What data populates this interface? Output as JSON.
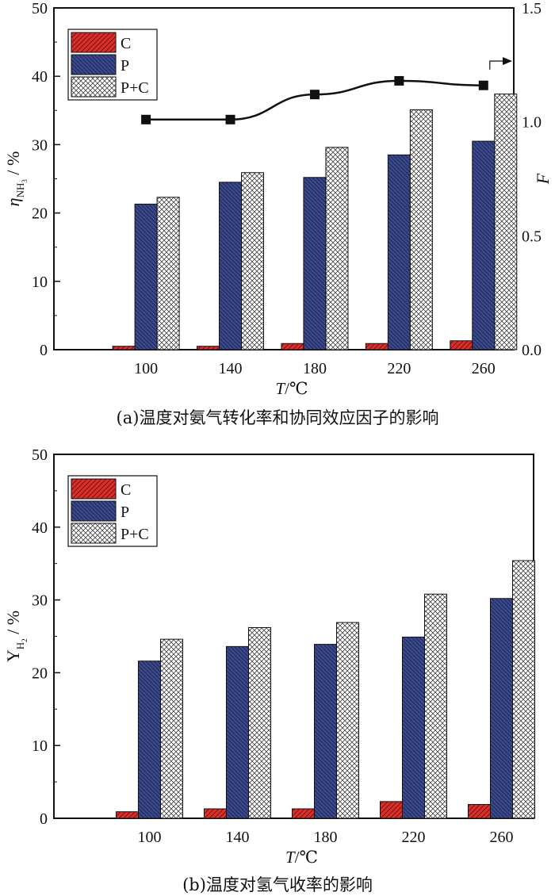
{
  "colors": {
    "C": "#d9302c",
    "P": "#3c4a8c",
    "PC": "#ffffff",
    "line": "#111111"
  },
  "chart_data": [
    {
      "type": "bar",
      "id": "a",
      "caption": "(a)温度对氨气转化率和协同效应因子的影响",
      "xlabel_var": "T",
      "xlabel_unit": "/℃",
      "ylabel_sym": "η",
      "ylabel_sub": "NH",
      "ylabel_subsub": "3",
      "ylabel_unit": " / %",
      "y2label": "F",
      "ylim": [
        0,
        50
      ],
      "yticks": [
        "0",
        "10",
        "20",
        "30",
        "40",
        "50"
      ],
      "y2lim": [
        0,
        1.5
      ],
      "y2ticks": [
        "0.0",
        "0.5",
        "1.0",
        "1.5"
      ],
      "categories": [
        "100",
        "140",
        "180",
        "220",
        "260"
      ],
      "legend_position": "top-left",
      "series": [
        {
          "name": "C",
          "key": "C",
          "values": [
            0.5,
            0.5,
            0.9,
            0.9,
            1.3
          ]
        },
        {
          "name": "P",
          "key": "P",
          "values": [
            21.3,
            24.5,
            25.2,
            28.5,
            30.5
          ]
        },
        {
          "name": "P+C",
          "key": "PC",
          "values": [
            22.3,
            25.9,
            29.6,
            35.1,
            37.4
          ]
        }
      ],
      "line_series": {
        "name": "F",
        "axis": "right",
        "values": [
          1.01,
          1.01,
          1.12,
          1.18,
          1.16
        ]
      }
    },
    {
      "type": "bar",
      "id": "b",
      "caption": "(b)温度对氢气收率的影响",
      "xlabel_var": "T",
      "xlabel_unit": "/℃",
      "ylabel_sym": "Y",
      "ylabel_sub": "H",
      "ylabel_subsub": "2",
      "ylabel_unit": " / %",
      "ylim": [
        0,
        50
      ],
      "yticks": [
        "0",
        "10",
        "20",
        "30",
        "40",
        "50"
      ],
      "categories": [
        "100",
        "140",
        "180",
        "220",
        "260"
      ],
      "legend_position": "top-left",
      "series": [
        {
          "name": "C",
          "key": "C",
          "values": [
            0.9,
            1.3,
            1.3,
            2.3,
            1.9
          ]
        },
        {
          "name": "P",
          "key": "P",
          "values": [
            21.6,
            23.6,
            23.9,
            24.9,
            30.2
          ]
        },
        {
          "name": "P+C",
          "key": "PC",
          "values": [
            24.6,
            26.2,
            26.9,
            30.8,
            35.4
          ]
        }
      ]
    }
  ]
}
